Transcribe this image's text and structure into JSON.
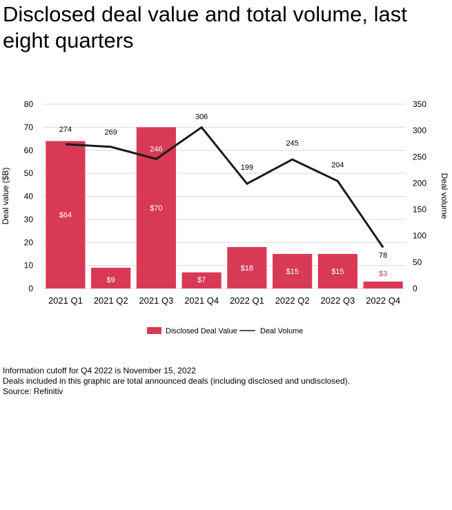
{
  "title": "Disclosed deal value and total volume, last eight quarters",
  "chart_data": {
    "type": "bar",
    "title": "Disclosed deal value and total volume, last eight quarters",
    "categories": [
      "2021 Q1",
      "2021 Q2",
      "2021 Q3",
      "2021 Q4",
      "2022 Q1",
      "2022 Q2",
      "2022 Q3",
      "2022 Q4"
    ],
    "series": [
      {
        "name": "Disclosed Deal Value",
        "type": "bar",
        "axis": "left",
        "color": "#d83a56",
        "values": [
          64,
          9,
          70,
          7,
          18,
          15,
          15,
          3
        ],
        "labels": [
          "$64",
          "$9",
          "$70",
          "$7",
          "$18",
          "$15",
          "$15",
          "$3"
        ]
      },
      {
        "name": "Deal Volume",
        "type": "line",
        "axis": "right",
        "color": "#1a1a1a",
        "values": [
          274,
          269,
          246,
          306,
          199,
          245,
          204,
          78
        ],
        "labels": [
          "274",
          "269",
          "246",
          "306",
          "199",
          "245",
          "204",
          "78"
        ]
      }
    ],
    "ylabel": "Deal value ($B)",
    "ylim": [
      0,
      80
    ],
    "yticks": [
      "0",
      "10",
      "20",
      "30",
      "40",
      "50",
      "60",
      "70",
      "80"
    ],
    "y2label": "Deal volume",
    "y2lim": [
      0,
      350
    ],
    "y2ticks": [
      "0",
      "50",
      "100",
      "150",
      "200",
      "250",
      "300",
      "350"
    ],
    "grid": true,
    "legend_position": "bottom"
  },
  "notes": [
    "Information  cutoff for Q4 2022 is November  15, 2022",
    "Deals included in this graphic are total announced deals (including disclosed and undisclosed).",
    "Source: Refinitiv"
  ]
}
